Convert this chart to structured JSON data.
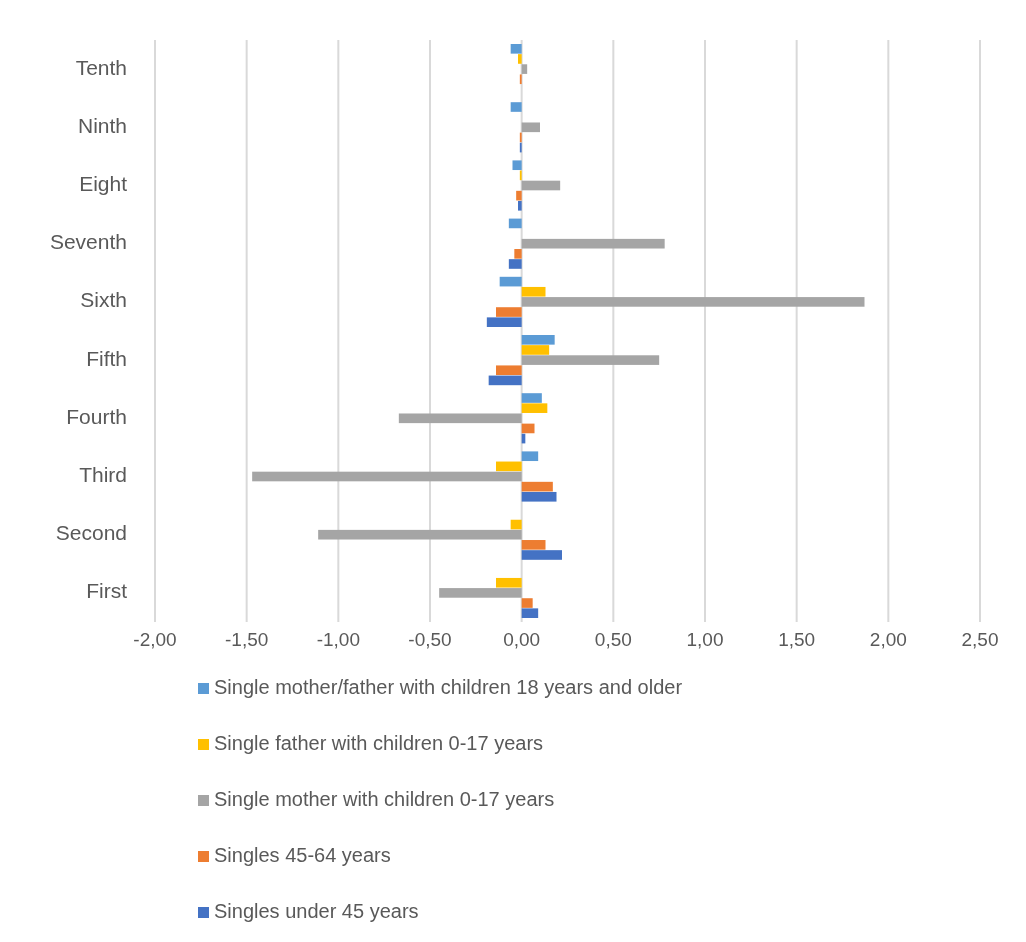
{
  "chart_data": {
    "type": "bar",
    "orientation": "horizontal",
    "categories": [
      "Tenth",
      "Ninth",
      "Eight",
      "Seventh",
      "Sixth",
      "Fifth",
      "Fourth",
      "Third",
      "Second",
      "First"
    ],
    "series": [
      {
        "name": "Single mother/father with children 18 years and older",
        "color": "#5b9bd5",
        "values": [
          -0.06,
          -0.06,
          -0.05,
          -0.07,
          -0.12,
          0.18,
          0.11,
          0.09,
          0,
          0
        ]
      },
      {
        "name": "Single father with children 0-17 years",
        "color": "#ffc000",
        "values": [
          -0.02,
          0,
          -0.01,
          0,
          0.13,
          0.15,
          0.14,
          -0.14,
          -0.06,
          -0.14
        ]
      },
      {
        "name": "Single mother with children 0-17 years",
        "color": "#a5a5a5",
        "values": [
          0.03,
          0.1,
          0.21,
          0.78,
          1.87,
          0.75,
          -0.67,
          -1.47,
          -1.11,
          -0.45
        ]
      },
      {
        "name": "Singles  45-64 years",
        "color": "#ed7d31",
        "values": [
          -0.01,
          -0.01,
          -0.03,
          -0.04,
          -0.14,
          -0.14,
          0.07,
          0.17,
          0.13,
          0.06
        ]
      },
      {
        "name": "Singles under 45 years",
        "color": "#4472c4",
        "values": [
          0,
          -0.01,
          -0.02,
          -0.07,
          -0.19,
          -0.18,
          0.02,
          0.19,
          0.22,
          0.09
        ]
      }
    ],
    "xlim": [
      -2,
      2.5
    ],
    "xticks": [
      {
        "value": -2,
        "label": "-2,00"
      },
      {
        "value": -1.5,
        "label": "-1,50"
      },
      {
        "value": -1,
        "label": "-1,00"
      },
      {
        "value": -0.5,
        "label": "-0,50"
      },
      {
        "value": 0,
        "label": "0,00"
      },
      {
        "value": 0.5,
        "label": "0,50"
      },
      {
        "value": 1,
        "label": "1,00"
      },
      {
        "value": 1.5,
        "label": "1,50"
      },
      {
        "value": 2,
        "label": "2,00"
      },
      {
        "value": 2.5,
        "label": "2,50"
      }
    ],
    "grid": "x",
    "legend": "bottom"
  }
}
